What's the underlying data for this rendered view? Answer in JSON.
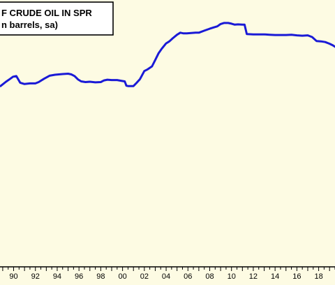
{
  "chart_data": {
    "type": "line",
    "title_lines": [
      "F CRUDE OIL IN SPR",
      "n barrels, sa)"
    ],
    "x_tick_labels": [
      "90",
      "92",
      "94",
      "96",
      "98",
      "00",
      "02",
      "04",
      "06",
      "08",
      "10",
      "12",
      "14",
      "16",
      "18"
    ],
    "x_tick_years": [
      1990,
      1992,
      1994,
      1996,
      1998,
      2000,
      2002,
      2004,
      2006,
      2008,
      2010,
      2012,
      2014,
      2016,
      2018
    ],
    "xlim": [
      1988.75,
      2019.5
    ],
    "ylim": [
      0,
      800
    ],
    "grid": false,
    "colors": {
      "background": "#fdfbe3",
      "line": "#1a1ad6",
      "frame": "#000000"
    },
    "series": [
      {
        "x": [
          1988.8,
          1989.3,
          1989.7,
          1989.95,
          1990.25,
          1990.6,
          1991.0,
          1991.5,
          1992.0,
          1992.3,
          1992.8,
          1993.3,
          1993.8,
          1994.5,
          1995.0,
          1995.3,
          1995.6,
          1995.9,
          1996.2,
          1996.6,
          1997.0,
          1997.5,
          1998.0,
          1998.3,
          1998.6,
          1999.0,
          1999.5,
          2000.0,
          2000.2,
          2000.35,
          2000.5,
          2001.0,
          2001.3,
          2001.6,
          2002.0,
          2002.3,
          2002.7,
          2003.0,
          2003.3,
          2003.6,
          2004.0,
          2004.3,
          2004.6,
          2005.0,
          2005.3,
          2005.6,
          2005.9,
          2006.3,
          2006.7,
          2007.0,
          2007.5,
          2008.0,
          2008.3,
          2008.7,
          2009.0,
          2009.3,
          2009.7,
          2010.0,
          2010.3,
          2010.6,
          2011.0,
          2011.2,
          2011.4,
          2012.0,
          2012.5,
          2013.0,
          2013.5,
          2014.0,
          2014.5,
          2015.0,
          2015.5,
          2016.0,
          2016.5,
          2017.0,
          2017.4,
          2017.8,
          2018.2,
          2018.6,
          2019.0,
          2019.3,
          2019.5
        ],
        "y": [
          542,
          555,
          564,
          570,
          572,
          552,
          548,
          550,
          550,
          554,
          564,
          573,
          576,
          578,
          579,
          577,
          572,
          562,
          556,
          554,
          555,
          553,
          554,
          559,
          561,
          560,
          560,
          557,
          556,
          543,
          542,
          542,
          552,
          563,
          587,
          592,
          601,
          620,
          640,
          654,
          670,
          676,
          685,
          696,
          702,
          700,
          700,
          701,
          702,
          702,
          708,
          714,
          717,
          721,
          728,
          731,
          731,
          729,
          726,
          727,
          726,
          726,
          698,
          697,
          697,
          697,
          696,
          695,
          695,
          695,
          696,
          694,
          693,
          694,
          689,
          677,
          676,
          674,
          669,
          664,
          660
        ]
      }
    ]
  }
}
